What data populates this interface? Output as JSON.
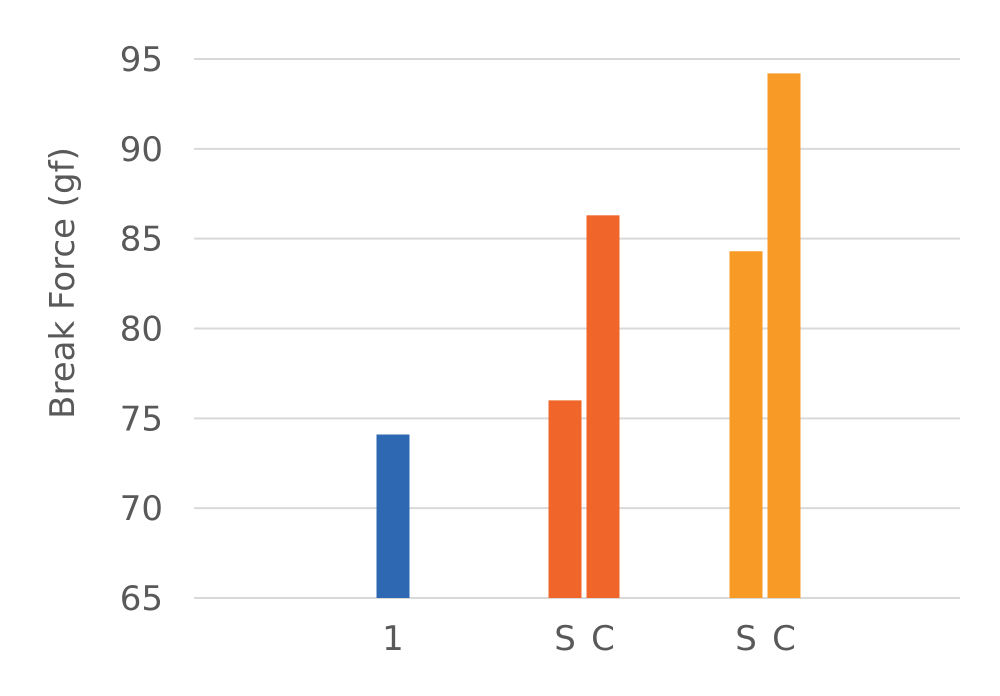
{
  "chart_data": {
    "type": "bar",
    "ylabel": "Break Force (gf)",
    "ylim": [
      65,
      95
    ],
    "yticks": [
      65,
      70,
      75,
      80,
      85,
      90,
      95
    ],
    "grid": true,
    "bars": [
      {
        "label": "1",
        "value": 74.1,
        "color": "#2e67b2"
      },
      {
        "label": "S",
        "value": 76.0,
        "color": "#f0662a"
      },
      {
        "label": "C",
        "value": 86.3,
        "color": "#f0662a"
      },
      {
        "label": "S",
        "value": 84.3,
        "color": "#f89a26"
      },
      {
        "label": "C",
        "value": 94.2,
        "color": "#f89a26"
      }
    ]
  }
}
